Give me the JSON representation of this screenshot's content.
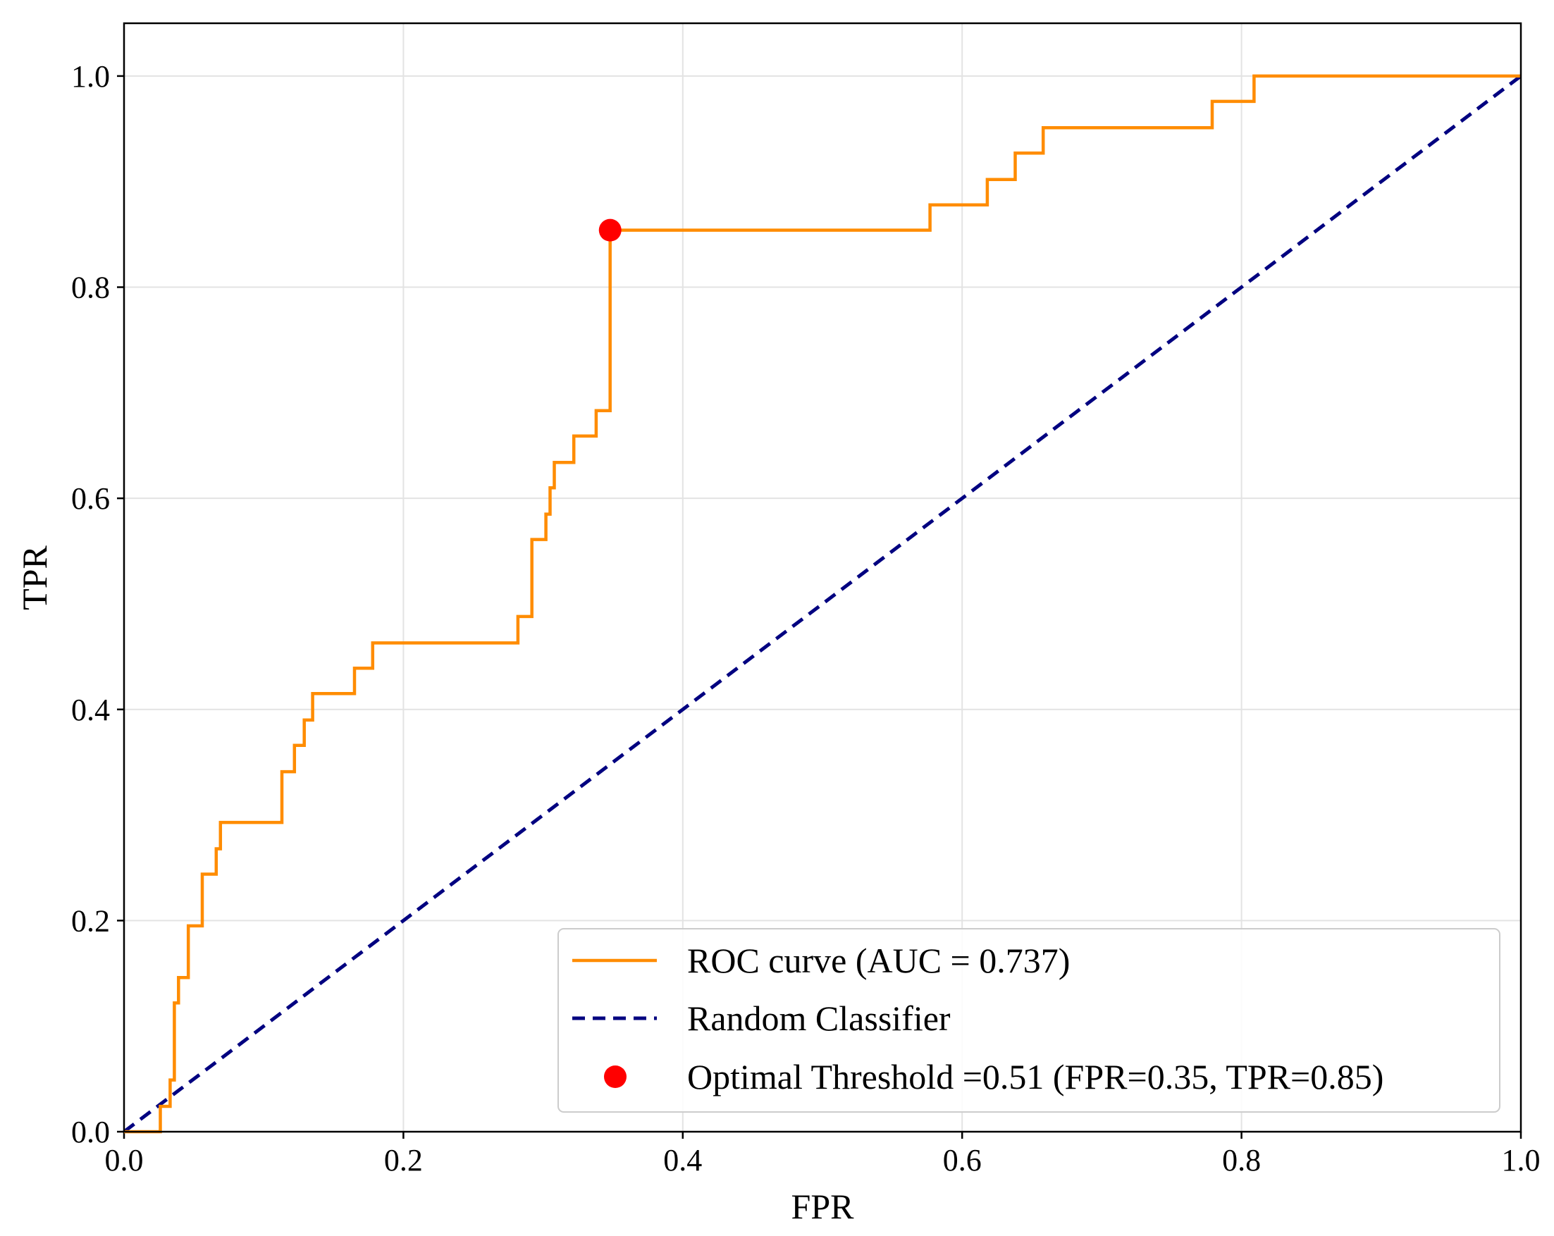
{
  "chart_data": {
    "type": "line",
    "title": "",
    "xlabel": "FPR",
    "ylabel": "TPR",
    "xlim": [
      0.0,
      1.0
    ],
    "ylim": [
      0.0,
      1.05
    ],
    "grid": true,
    "x_ticks": [
      "0.0",
      "0.2",
      "0.4",
      "0.6",
      "0.8",
      "1.0"
    ],
    "y_ticks": [
      "0.0",
      "0.2",
      "0.4",
      "0.6",
      "0.8",
      "1.0"
    ],
    "legend_position": "lower-right",
    "series": [
      {
        "name": "ROC curve (AUC = 0.737)",
        "kind": "step-line",
        "color": "#ff8c00",
        "points": [
          [
            0.0,
            0.0
          ],
          [
            0.026,
            0.0
          ],
          [
            0.026,
            0.024
          ],
          [
            0.033,
            0.024
          ],
          [
            0.033,
            0.049
          ],
          [
            0.036,
            0.049
          ],
          [
            0.036,
            0.122
          ],
          [
            0.039,
            0.122
          ],
          [
            0.039,
            0.146
          ],
          [
            0.046,
            0.146
          ],
          [
            0.046,
            0.195
          ],
          [
            0.056,
            0.195
          ],
          [
            0.056,
            0.244
          ],
          [
            0.066,
            0.244
          ],
          [
            0.066,
            0.268
          ],
          [
            0.069,
            0.268
          ],
          [
            0.069,
            0.293
          ],
          [
            0.113,
            0.293
          ],
          [
            0.113,
            0.341
          ],
          [
            0.122,
            0.341
          ],
          [
            0.122,
            0.366
          ],
          [
            0.129,
            0.366
          ],
          [
            0.129,
            0.39
          ],
          [
            0.135,
            0.39
          ],
          [
            0.135,
            0.415
          ],
          [
            0.165,
            0.415
          ],
          [
            0.165,
            0.439
          ],
          [
            0.178,
            0.439
          ],
          [
            0.178,
            0.463
          ],
          [
            0.282,
            0.463
          ],
          [
            0.282,
            0.488
          ],
          [
            0.292,
            0.488
          ],
          [
            0.292,
            0.561
          ],
          [
            0.302,
            0.561
          ],
          [
            0.302,
            0.585
          ],
          [
            0.305,
            0.585
          ],
          [
            0.305,
            0.61
          ],
          [
            0.308,
            0.61
          ],
          [
            0.308,
            0.634
          ],
          [
            0.322,
            0.634
          ],
          [
            0.322,
            0.659
          ],
          [
            0.338,
            0.659
          ],
          [
            0.338,
            0.683
          ],
          [
            0.348,
            0.683
          ],
          [
            0.348,
            0.854
          ],
          [
            0.577,
            0.854
          ],
          [
            0.577,
            0.878
          ],
          [
            0.618,
            0.878
          ],
          [
            0.618,
            0.902
          ],
          [
            0.638,
            0.902
          ],
          [
            0.638,
            0.927
          ],
          [
            0.658,
            0.927
          ],
          [
            0.658,
            0.951
          ],
          [
            0.779,
            0.951
          ],
          [
            0.779,
            0.976
          ],
          [
            0.809,
            0.976
          ],
          [
            0.809,
            1.0
          ],
          [
            1.0,
            1.0
          ]
        ]
      },
      {
        "name": "Random Classifier",
        "kind": "dashed-line",
        "color": "#000080",
        "points": [
          [
            0.0,
            0.0
          ],
          [
            1.0,
            1.0
          ]
        ]
      },
      {
        "name": "Optimal Threshold =0.51 (FPR=0.35, TPR=0.85)",
        "kind": "marker",
        "color": "#ff0000",
        "points": [
          [
            0.348,
            0.854
          ]
        ]
      }
    ]
  }
}
